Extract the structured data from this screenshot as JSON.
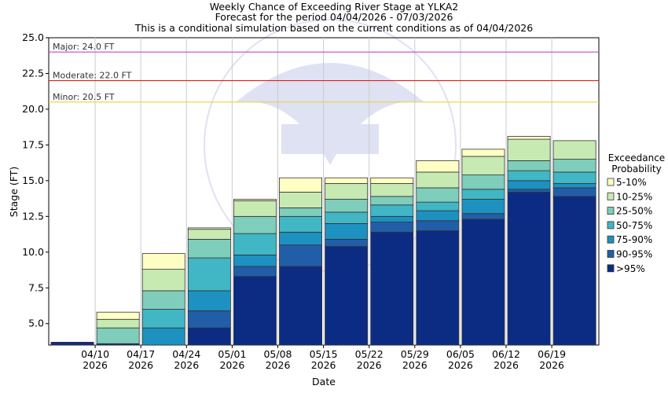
{
  "chart_data": {
    "type": "bar",
    "title": [
      "Weekly Chance of Exceeding River Stage at YLKA2",
      "Forecast for the period 04/04/2026 - 07/03/2026",
      "This is a conditional simulation based on the current conditions as of 04/04/2026"
    ],
    "xlabel": "Date",
    "ylabel": "Stage (FT)",
    "ylim": [
      3.5,
      25.0
    ],
    "yticks": [
      5.0,
      7.5,
      10.0,
      12.5,
      15.0,
      17.5,
      20.0,
      22.5,
      25.0
    ],
    "ytick_labels": [
      "5.0",
      "7.5",
      "10.0",
      "12.5",
      "15.0",
      "17.5",
      "20.0",
      "22.5",
      "25.0"
    ],
    "grid": "vertical",
    "x_tick_labels": [
      {
        "date": "04/10",
        "year": "2026"
      },
      {
        "date": "04/17",
        "year": "2026"
      },
      {
        "date": "04/24",
        "year": "2026"
      },
      {
        "date": "05/01",
        "year": "2026"
      },
      {
        "date": "05/08",
        "year": "2026"
      },
      {
        "date": "05/15",
        "year": "2026"
      },
      {
        "date": "05/22",
        "year": "2026"
      },
      {
        "date": "05/29",
        "year": "2026"
      },
      {
        "date": "06/05",
        "year": "2026"
      },
      {
        "date": "06/12",
        "year": "2026"
      },
      {
        "date": "06/19",
        "year": "2026"
      }
    ],
    "thresholds": [
      {
        "label": "Major: 24.0 FT",
        "value": 24.0,
        "color": "#cc44cc"
      },
      {
        "label": "Moderate: 22.0 FT",
        "value": 22.0,
        "color": "#dd2222"
      },
      {
        "label": "Minor: 20.5 FT",
        "value": 20.5,
        "color": "#e8d24a"
      }
    ],
    "legend": {
      "title": [
        "Exceedance",
        "Probability"
      ],
      "position": "right",
      "items": [
        {
          "label": "5-10%",
          "color": "#ffffc4"
        },
        {
          "label": "10-25%",
          "color": "#c6eab2"
        },
        {
          "label": "25-50%",
          "color": "#7fcdbb"
        },
        {
          "label": "50-75%",
          "color": "#41b6c4"
        },
        {
          "label": "75-90%",
          "color": "#1d91c0"
        },
        {
          "label": "90-95%",
          "color": "#225ea8"
        },
        {
          "label": ">95%",
          "color": "#0c2c84"
        }
      ]
    },
    "series_boundaries_note": "",
    "weeks": [
      {
        "levels": [
          3.7
        ]
      },
      {
        "levels": [
          3.6,
          3.6,
          3.6,
          3.6,
          4.7,
          5.3,
          5.8
        ]
      },
      {
        "levels": [
          3.5,
          3.5,
          4.7,
          6.0,
          7.3,
          8.8,
          9.9
        ]
      },
      {
        "levels": [
          4.7,
          5.9,
          7.3,
          9.6,
          10.9,
          11.6,
          11.7
        ]
      },
      {
        "levels": [
          8.3,
          9.0,
          9.8,
          11.3,
          12.5,
          13.6,
          13.7
        ]
      },
      {
        "levels": [
          9.0,
          10.5,
          11.4,
          12.5,
          13.1,
          14.2,
          15.2
        ]
      },
      {
        "levels": [
          10.4,
          10.9,
          12.0,
          12.8,
          13.7,
          14.8,
          15.2
        ]
      },
      {
        "levels": [
          11.4,
          12.1,
          12.5,
          13.3,
          13.9,
          14.8,
          15.2
        ]
      },
      {
        "levels": [
          11.5,
          12.2,
          12.9,
          13.5,
          14.5,
          15.6,
          16.4
        ]
      },
      {
        "levels": [
          12.3,
          12.7,
          13.7,
          14.4,
          15.4,
          16.7,
          17.2
        ]
      },
      {
        "levels": [
          14.2,
          14.4,
          15.0,
          15.7,
          16.4,
          17.9,
          18.1
        ]
      },
      {
        "levels": [
          13.9,
          14.5,
          14.8,
          15.6,
          16.5,
          17.8,
          17.8
        ]
      }
    ]
  }
}
